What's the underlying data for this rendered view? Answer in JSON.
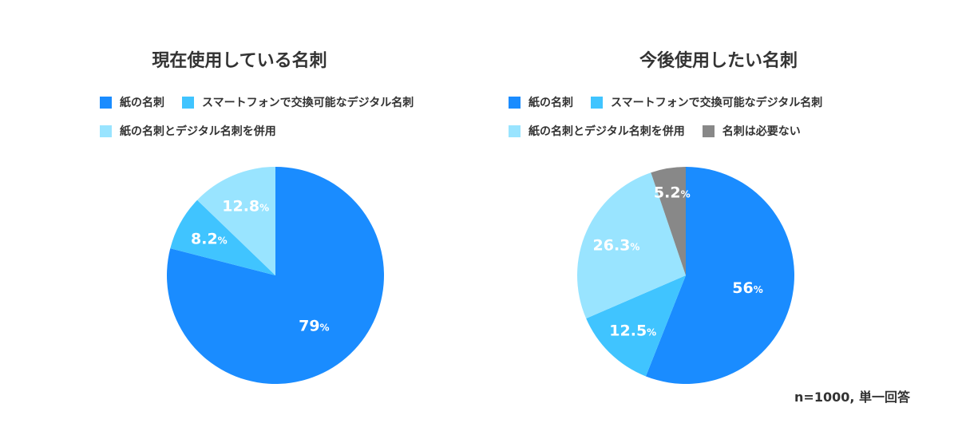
{
  "colors": {
    "paper": "#1a8cff",
    "digital": "#40c4ff",
    "both": "#99e4ff",
    "none": "#888888"
  },
  "note": "n=1000, 単一回答",
  "chart_data": [
    {
      "type": "pie",
      "title": "現在使用している名刺",
      "legend": [
        {
          "label": "紙の名刺",
          "color": "#1a8cff"
        },
        {
          "label": "スマートフォンで交換可能なデジタル名刺",
          "color": "#40c4ff"
        },
        {
          "label": "紙の名刺とデジタル名刺を併用",
          "color": "#99e4ff"
        }
      ],
      "slices": [
        {
          "label": "紙の名刺",
          "value": 79,
          "display": "79",
          "color": "#1a8cff"
        },
        {
          "label": "スマートフォンで交換可能なデジタル名刺",
          "value": 8.2,
          "display": "8.2",
          "color": "#40c4ff"
        },
        {
          "label": "紙の名刺とデジタル名刺を併用",
          "value": 12.8,
          "display": "12.8",
          "color": "#99e4ff"
        }
      ],
      "unit": "%"
    },
    {
      "type": "pie",
      "title": "今後使用したい名刺",
      "legend": [
        {
          "label": "紙の名刺",
          "color": "#1a8cff"
        },
        {
          "label": "スマートフォンで交換可能なデジタル名刺",
          "color": "#40c4ff"
        },
        {
          "label": "紙の名刺とデジタル名刺を併用",
          "color": "#99e4ff"
        },
        {
          "label": "名刺は必要ない",
          "color": "#888888"
        }
      ],
      "slices": [
        {
          "label": "紙の名刺",
          "value": 56,
          "display": "56",
          "color": "#1a8cff"
        },
        {
          "label": "スマートフォンで交換可能なデジタル名刺",
          "value": 12.5,
          "display": "12.5",
          "color": "#40c4ff"
        },
        {
          "label": "紙の名刺とデジタル名刺を併用",
          "value": 26.3,
          "display": "26.3",
          "color": "#99e4ff"
        },
        {
          "label": "名刺は必要ない",
          "value": 5.2,
          "display": "5.2",
          "color": "#888888"
        }
      ],
      "unit": "%"
    }
  ]
}
